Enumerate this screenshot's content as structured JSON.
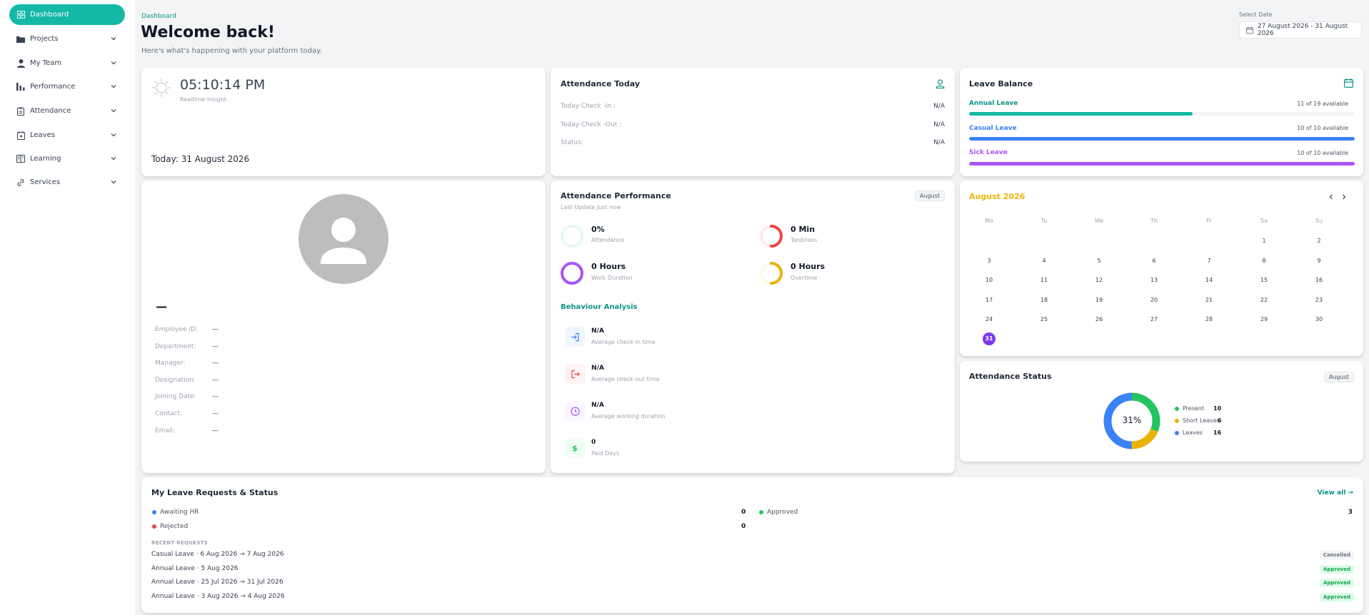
{
  "sidebar": {
    "items": [
      {
        "label": "Dashboard",
        "icon": "dashboard-icon"
      },
      {
        "label": "Projects",
        "icon": "folder-icon"
      },
      {
        "label": "My Team",
        "icon": "user-icon"
      },
      {
        "label": "Performance",
        "icon": "bar-chart-icon"
      },
      {
        "label": "Attendance",
        "icon": "clipboard-icon"
      },
      {
        "label": "Leaves",
        "icon": "calendar-plus-icon"
      },
      {
        "label": "Learning",
        "icon": "book-icon"
      },
      {
        "label": "Services",
        "icon": "link-icon"
      }
    ]
  },
  "header": {
    "breadcrumb": "Dashboard",
    "title": "Welcome back!",
    "subtitle": "Here's what's happening with your platform today.",
    "date_label": "Select Date",
    "date_range": "27 August 2026 - 31 August 2026"
  },
  "clock": {
    "time": "05:10:14 PM",
    "caption": "Realtime Insight",
    "today": "Today: 31 August 2026"
  },
  "attendance_today": {
    "title": "Attendance Today",
    "rows": [
      {
        "label": "Today Check -In :",
        "value": "N/A"
      },
      {
        "label": "Today Check -Out :",
        "value": "N/A"
      },
      {
        "label": "Status:",
        "value": "N/A"
      }
    ]
  },
  "leave_balance": {
    "title": "Leave Balance",
    "items": [
      {
        "label": "Annual Leave",
        "value": "11 of 19 available",
        "fraction": 0.579,
        "color": "#14b8a6"
      },
      {
        "label": "Casual Leave",
        "value": "10 of 10 available",
        "fraction": 1.0,
        "color": "#3b82f6"
      },
      {
        "label": "Sick Leave",
        "value": "10 of 10 available",
        "fraction": 1.0,
        "color": "#a855f7"
      }
    ]
  },
  "profile": {
    "name": "—",
    "fields": [
      {
        "label": "Employee ID:",
        "value": "—"
      },
      {
        "label": "Department:",
        "value": "—"
      },
      {
        "label": "Manager:",
        "value": "—"
      },
      {
        "label": "Designation:",
        "value": "—"
      },
      {
        "label": "Joining Date:",
        "value": "—"
      },
      {
        "label": "Contact:",
        "value": "—"
      },
      {
        "label": "Email:",
        "value": "—"
      }
    ]
  },
  "performance": {
    "title": "Attendance Performance",
    "month": "August",
    "updated": "Last Update Just now",
    "metrics": [
      {
        "value": "0%",
        "label": "Attendance",
        "color": "#14b8a6",
        "fraction": 0.0
      },
      {
        "value": "0 Min",
        "label": "Tardiness",
        "color": "#ef4444",
        "fraction": 0.5
      },
      {
        "value": "0 Hours",
        "label": "Work Duration",
        "color": "#a855f7",
        "fraction": 1.0
      },
      {
        "value": "0 Hours",
        "label": "Overtime",
        "color": "#eab308",
        "fraction": 0.5
      }
    ],
    "behaviour_title": "Behaviour Analysis",
    "behaviour": [
      {
        "value": "N/A",
        "label": "Average check-in time",
        "icon": "sign-in-icon",
        "color": "#3b82f6",
        "bg": "#eff6ff"
      },
      {
        "value": "N/A",
        "label": "Average check-out time",
        "icon": "sign-out-icon",
        "color": "#ef4444",
        "bg": "#fef2f2"
      },
      {
        "value": "N/A",
        "label": "Average working duration",
        "icon": "clock-icon",
        "color": "#a855f7",
        "bg": "#faf5ff"
      },
      {
        "value": "0",
        "label": "Paid Days",
        "icon": "dollar-icon",
        "color": "#22c55e",
        "bg": "#f0fdf4"
      }
    ]
  },
  "calendar": {
    "month": "August 2026",
    "weekdays": [
      "Mo",
      "Tu",
      "We",
      "Th",
      "Fr",
      "Sa",
      "Su"
    ],
    "days": [
      "1",
      "2",
      "3",
      "4",
      "5",
      "6",
      "7",
      "8",
      "9",
      "10",
      "11",
      "12",
      "13",
      "14",
      "15",
      "16",
      "17",
      "18",
      "19",
      "20",
      "21",
      "22",
      "23",
      "24",
      "25",
      "26",
      "27",
      "28",
      "29",
      "30",
      "31"
    ],
    "selected": "31"
  },
  "attendance_status": {
    "title": "Attendance Status",
    "month": "August",
    "center": "31%",
    "items": [
      {
        "label": "Present",
        "value": "10",
        "color": "#22c55e",
        "count": 10
      },
      {
        "label": "Short Leaves",
        "value": "6",
        "color": "#eab308",
        "count": 6
      },
      {
        "label": "Leaves",
        "value": "16",
        "color": "#3b82f6",
        "count": 16
      }
    ]
  },
  "requests": {
    "title": "My Leave Requests & Status",
    "view_all": "View all →",
    "summary": [
      {
        "label": "Awaiting HR",
        "value": "0",
        "color": "#3b82f6"
      },
      {
        "label": "Approved",
        "value": "3",
        "color": "#22c55e"
      },
      {
        "label": "Rejected",
        "value": "0",
        "color": "#ef4444"
      }
    ],
    "recent_label": "RECENT REQUESTS",
    "recent": [
      {
        "text": "Casual Leave · 6 Aug 2026 → 7 Aug 2026",
        "status": "Cancelled",
        "color": "#6b7280",
        "bg": "#f3f4f6"
      },
      {
        "text": "Annual Leave · 5 Aug 2026",
        "status": "Approved",
        "color": "#16a34a",
        "bg": "#dcfce7"
      },
      {
        "text": "Annual Leave · 25 Jul 2026 → 31 Jul 2026",
        "status": "Approved",
        "color": "#16a34a",
        "bg": "#dcfce7"
      },
      {
        "text": "Annual Leave · 3 Aug 2026 → 4 Aug 2026",
        "status": "Approved",
        "color": "#16a34a",
        "bg": "#dcfce7"
      }
    ]
  }
}
